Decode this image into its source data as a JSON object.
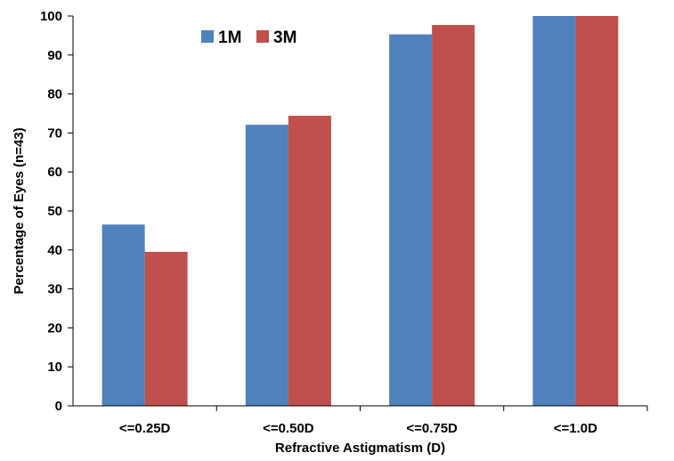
{
  "chart_data": {
    "type": "bar",
    "categories": [
      "<=0.25D",
      "<=0.50D",
      "<=0.75D",
      "<=1.0D"
    ],
    "series": [
      {
        "name": "1M",
        "values": [
          46.5,
          72.1,
          95.3,
          100
        ],
        "color": "#4F81BD"
      },
      {
        "name": "3M",
        "values": [
          39.5,
          74.4,
          97.7,
          100
        ],
        "color": "#C0504D"
      }
    ],
    "xlabel": "Refractive Astigmatism (D)",
    "ylabel": "Percentage of Eyes (n=43)",
    "ylim": [
      0,
      100
    ],
    "yticks": [
      0,
      10,
      20,
      30,
      40,
      50,
      60,
      70,
      80,
      90,
      100
    ],
    "grid": false,
    "legend": "top-left"
  }
}
